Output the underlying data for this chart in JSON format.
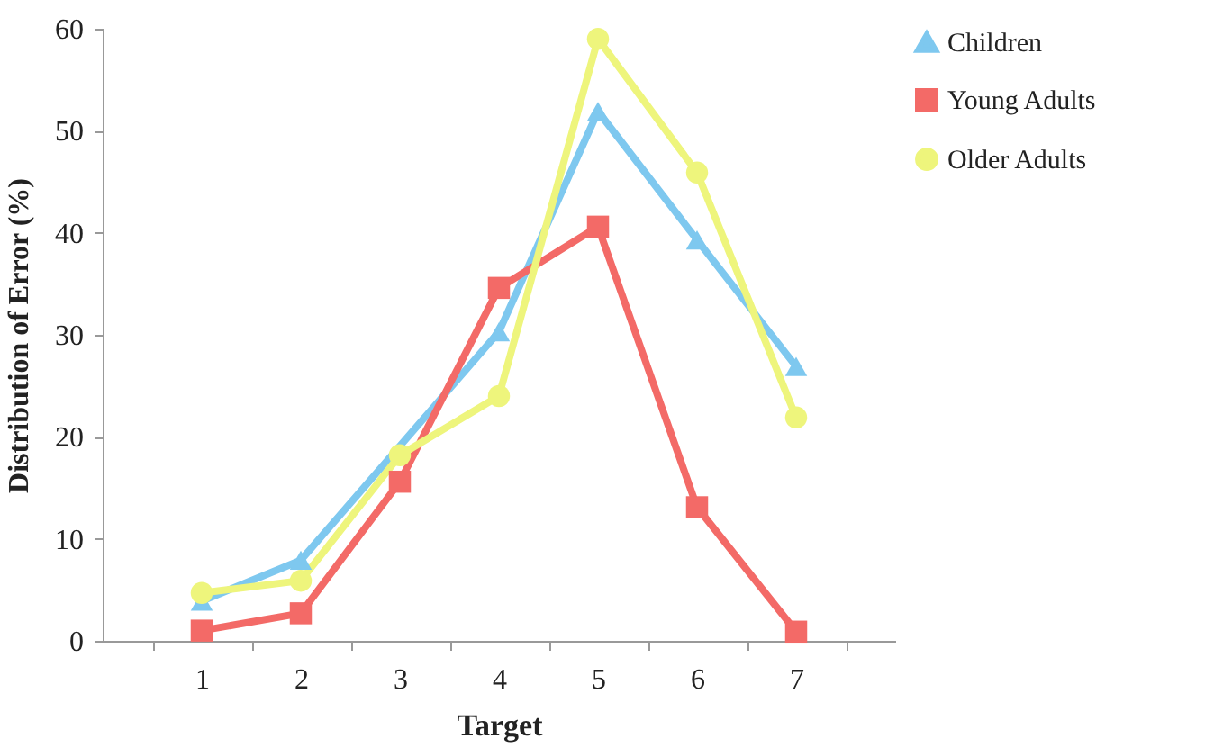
{
  "chart_data": {
    "type": "line",
    "xlabel": "Target",
    "ylabel": "Distribution of Error (%)",
    "categories": [
      "1",
      "2",
      "3",
      "4",
      "5",
      "6",
      "7"
    ],
    "series": [
      {
        "name": "Children",
        "color": "#7ec8ef",
        "marker": "triangle",
        "values": [
          3.9,
          7.9,
          null,
          30.3,
          51.9,
          39.3,
          26.9
        ]
      },
      {
        "name": "Young Adults",
        "color": "#f36a67",
        "marker": "square",
        "values": [
          1.0,
          2.7,
          15.6,
          34.6,
          40.6,
          13.1,
          0.9
        ]
      },
      {
        "name": "Older Adults",
        "color": "#eef57c",
        "marker": "circle",
        "values": [
          4.7,
          5.9,
          18.2,
          24,
          59,
          45.9,
          21.9
        ]
      }
    ],
    "ylim": [
      0,
      60
    ],
    "yticks": [
      0,
      10,
      20,
      30,
      40,
      50,
      60
    ],
    "grid": false,
    "legend": "right"
  }
}
